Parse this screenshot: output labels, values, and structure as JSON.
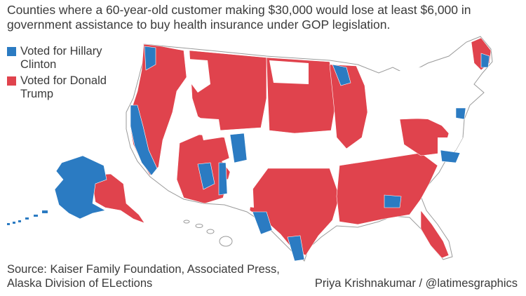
{
  "title": "Counties where a 60-year-old customer making $30,000 would lose at least $6,000 in government assistance to buy health insurance under GOP legislation.",
  "legend": [
    {
      "label": "Voted for Hillary Clinton",
      "color": "#2b7bc2"
    },
    {
      "label": "Voted for Donald Trump",
      "color": "#e0434d"
    }
  ],
  "colors": {
    "clinton": "#2b7bc2",
    "trump": "#e0434d",
    "other": "#ffffff",
    "border": "#b0b0b0"
  },
  "source": "Source: Kaiser Family Foundation, Associated Press, Alaska Division of ELections",
  "credit": "Priya Krishnakumar / @latimesgraphics"
}
